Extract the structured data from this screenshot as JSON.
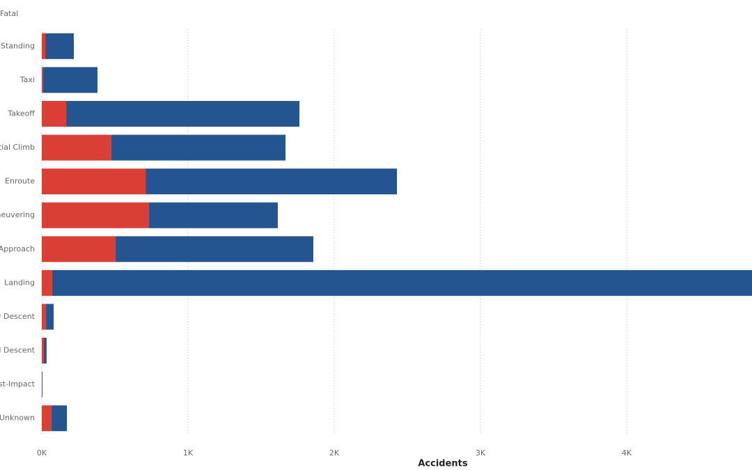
{
  "chart_data": {
    "type": "stacked-bar-horizontal",
    "legend": "Fatal",
    "x_label": "Accidents",
    "categories": [
      "Standing",
      "Taxi",
      "Takeoff",
      "itial Climb",
      "Enroute",
      "aneuvering",
      "Approach",
      "Landing",
      "cy Descent",
      "ed Descent",
      "ost-Impact",
      "Unknown"
    ],
    "series": [
      {
        "name": "Fatal",
        "color": "#d93f35",
        "values": [
          24,
          8,
          167,
          476,
          710,
          733,
          505,
          71,
          29,
          14,
          1,
          67
        ]
      },
      {
        "color": "#255590",
        "values": [
          195,
          373,
          1595,
          1191,
          1719,
          881,
          1352,
          4900,
          52,
          19,
          4,
          105
        ]
      }
    ],
    "xlim": [
      0,
      4857
    ],
    "xticks": [
      {
        "value": 0,
        "label": "0K"
      },
      {
        "value": 1000,
        "label": "1K"
      },
      {
        "value": 2000,
        "label": "2K"
      },
      {
        "value": 3000,
        "label": "3K"
      },
      {
        "value": 4000,
        "label": "4K"
      }
    ],
    "grid": true
  }
}
